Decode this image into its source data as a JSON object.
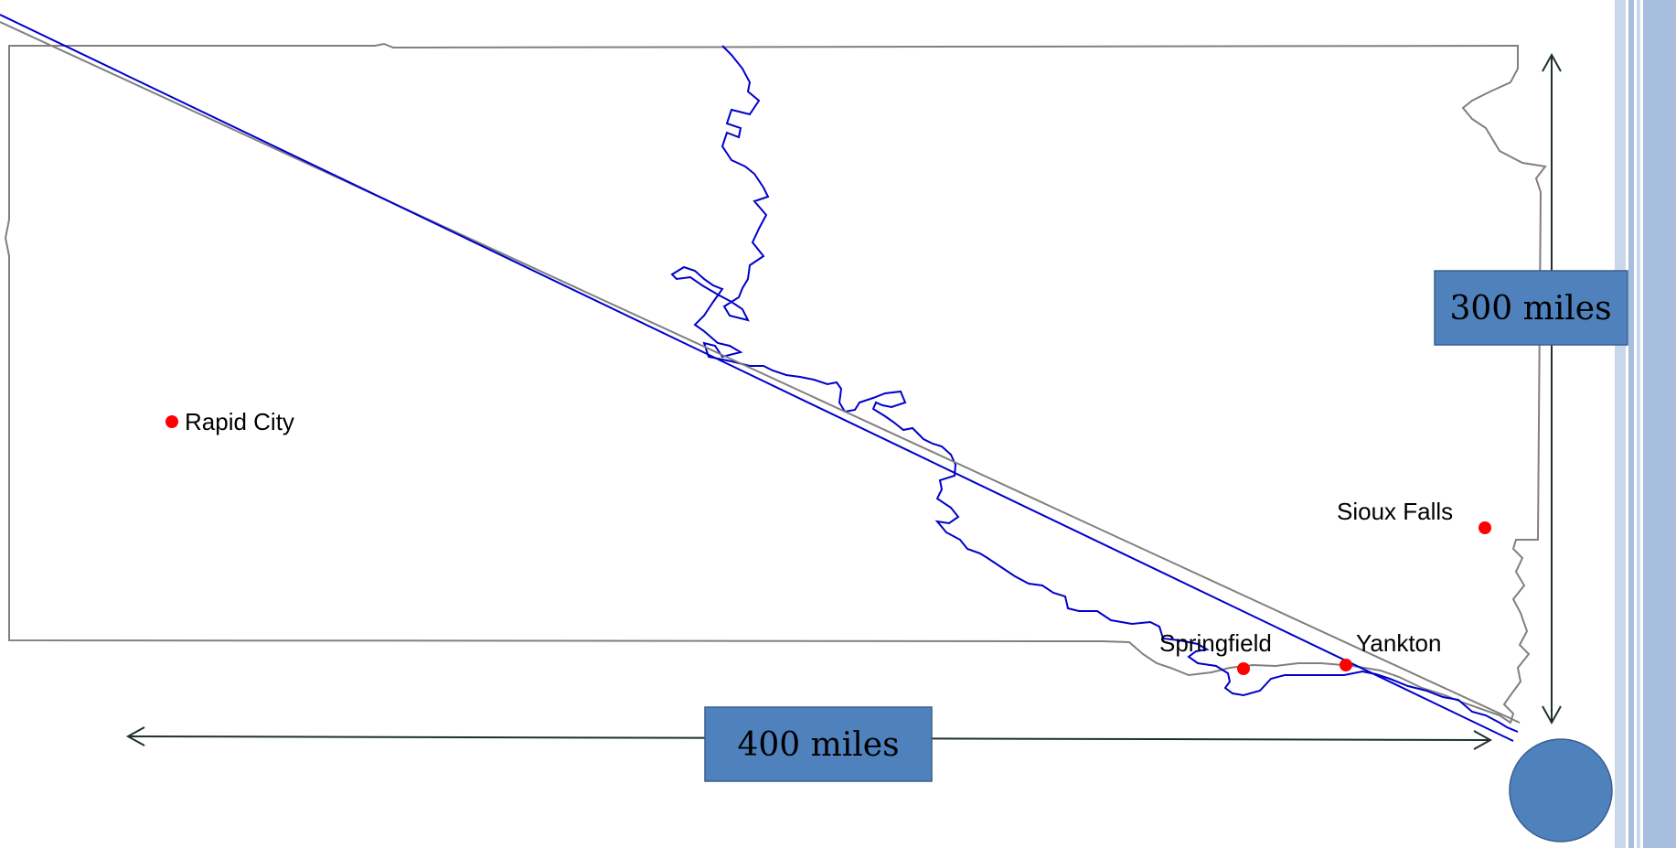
{
  "map": {
    "cities": [
      {
        "name": "Rapid City"
      },
      {
        "name": "Sioux Falls"
      },
      {
        "name": "Springfield"
      },
      {
        "name": "Yankton"
      }
    ],
    "dimensions": {
      "width_label": "400 miles",
      "height_label": "300 miles"
    },
    "colors": {
      "state_border": "#808080",
      "river": "#0000cc",
      "straight_line": "#0000cc",
      "city_marker": "#ff0000",
      "label_box": "#4f81bd",
      "label_box_border": "#3a5f8f",
      "arrows": "#1f2f2f",
      "side_bar_light": "#c9d7ea",
      "side_bar_mid": "#a7bfdc"
    }
  }
}
